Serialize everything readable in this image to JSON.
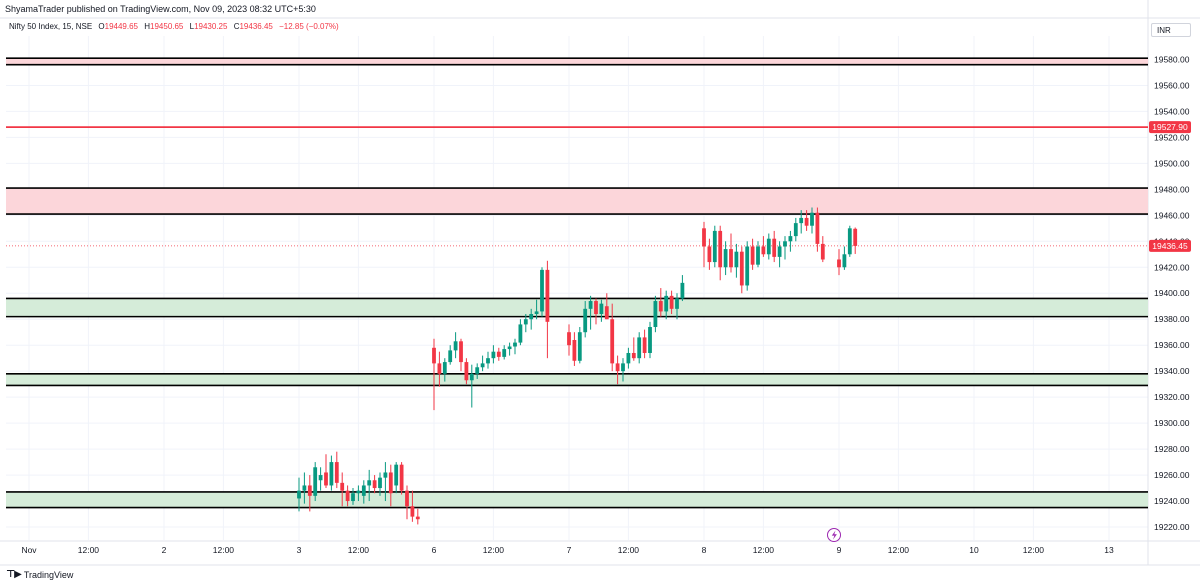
{
  "header": {
    "publisher_line": "ShyamaTrader published on TradingView.com, Nov 09, 2023 08:32 UTC+5:30"
  },
  "legend": {
    "symbol": "Nifty 50 Index, 15, NSE",
    "open_label": "O",
    "open": "19449.65",
    "high_label": "H",
    "high": "19450.65",
    "low_label": "L",
    "low": "19430.25",
    "close_label": "C",
    "close": "19436.45",
    "change": "−12.85 (−0.07%)"
  },
  "currency_button": "INR",
  "footer": {
    "brand": "TradingView"
  },
  "colors": {
    "up": "#089981",
    "down": "#f23645",
    "support_zone": "#d5ecd9",
    "resistance_zone": "#fcd6da",
    "red_line": "#f23645"
  },
  "chart_data": {
    "type": "candlestick",
    "symbol": "Nifty 50 Index",
    "interval": "15",
    "exchange": "NSE",
    "ylim": [
      19210,
      19595
    ],
    "y_ticks": [
      19220,
      19240,
      19260,
      19280,
      19300,
      19320,
      19340,
      19360,
      19380,
      19400,
      19420,
      19440,
      19460,
      19480,
      19500,
      19520,
      19540,
      19560,
      19580
    ],
    "x_ticks": [
      {
        "label": "Nov",
        "at": "2023-11-01 09:15"
      },
      {
        "label": "12:00",
        "at": "2023-11-01 12:00"
      },
      {
        "label": "2",
        "at": "2023-11-02 09:15"
      },
      {
        "label": "12:00",
        "at": "2023-11-02 12:00"
      },
      {
        "label": "3",
        "at": "2023-11-03 09:15"
      },
      {
        "label": "12:00",
        "at": "2023-11-03 12:00"
      },
      {
        "label": "6",
        "at": "2023-11-06 09:15"
      },
      {
        "label": "12:00",
        "at": "2023-11-06 12:00"
      },
      {
        "label": "7",
        "at": "2023-11-07 09:15"
      },
      {
        "label": "12:00",
        "at": "2023-11-07 12:00"
      },
      {
        "label": "8",
        "at": "2023-11-08 09:15"
      },
      {
        "label": "12:00",
        "at": "2023-11-08 12:00"
      },
      {
        "label": "9",
        "at": "2023-11-09 09:15"
      },
      {
        "label": "12:00",
        "at": "2023-11-09 12:00"
      },
      {
        "label": "10",
        "at": "2023-11-10 09:15"
      },
      {
        "label": "12:00",
        "at": "2023-11-10 12:00"
      },
      {
        "label": "13",
        "at": "2023-11-13 09:15"
      }
    ],
    "zones": [
      {
        "kind": "resistance",
        "low": 19576,
        "high": 19581
      },
      {
        "kind": "resistance",
        "low": 19461,
        "high": 19481
      },
      {
        "kind": "support",
        "low": 19382,
        "high": 19396
      },
      {
        "kind": "support",
        "low": 19329,
        "high": 19338
      },
      {
        "kind": "support",
        "low": 19235,
        "high": 19247
      }
    ],
    "horizontal_lines": [
      {
        "value": 19527.9,
        "label": "19527.90",
        "style": "solid"
      },
      {
        "value": 19436.45,
        "label": "19436.45",
        "style": "dotted"
      }
    ],
    "candles": [
      {
        "t": "2023-11-03 09:15",
        "o": 19242,
        "h": 19258,
        "l": 19232,
        "c": 19248
      },
      {
        "t": "2023-11-03 09:30",
        "o": 19248,
        "h": 19262,
        "l": 19238,
        "c": 19252
      },
      {
        "t": "2023-11-03 09:45",
        "o": 19252,
        "h": 19260,
        "l": 19232,
        "c": 19244
      },
      {
        "t": "2023-11-03 10:00",
        "o": 19244,
        "h": 19270,
        "l": 19240,
        "c": 19266
      },
      {
        "t": "2023-11-03 10:15",
        "o": 19256,
        "h": 19266,
        "l": 19248,
        "c": 19260
      },
      {
        "t": "2023-11-03 10:30",
        "o": 19262,
        "h": 19276,
        "l": 19250,
        "c": 19252
      },
      {
        "t": "2023-11-03 10:45",
        "o": 19252,
        "h": 19275,
        "l": 19248,
        "c": 19270
      },
      {
        "t": "2023-11-03 11:00",
        "o": 19270,
        "h": 19278,
        "l": 19250,
        "c": 19254
      },
      {
        "t": "2023-11-03 11:15",
        "o": 19254,
        "h": 19262,
        "l": 19236,
        "c": 19248
      },
      {
        "t": "2023-11-03 11:30",
        "o": 19248,
        "h": 19252,
        "l": 19236,
        "c": 19240
      },
      {
        "t": "2023-11-03 11:45",
        "o": 19240,
        "h": 19250,
        "l": 19237,
        "c": 19246
      },
      {
        "t": "2023-11-03 12:00",
        "o": 19246,
        "h": 19252,
        "l": 19240,
        "c": 19248
      },
      {
        "t": "2023-11-03 12:15",
        "o": 19244,
        "h": 19256,
        "l": 19238,
        "c": 19252
      },
      {
        "t": "2023-11-03 12:30",
        "o": 19252,
        "h": 19264,
        "l": 19240,
        "c": 19256
      },
      {
        "t": "2023-11-03 12:45",
        "o": 19256,
        "h": 19260,
        "l": 19246,
        "c": 19250
      },
      {
        "t": "2023-11-03 13:00",
        "o": 19250,
        "h": 19262,
        "l": 19244,
        "c": 19258
      },
      {
        "t": "2023-11-03 13:15",
        "o": 19258,
        "h": 19270,
        "l": 19240,
        "c": 19262
      },
      {
        "t": "2023-11-03 13:30",
        "o": 19262,
        "h": 19268,
        "l": 19236,
        "c": 19246
      },
      {
        "t": "2023-11-03 13:45",
        "o": 19252,
        "h": 19270,
        "l": 19246,
        "c": 19268
      },
      {
        "t": "2023-11-03 14:00",
        "o": 19268,
        "h": 19270,
        "l": 19245,
        "c": 19248
      },
      {
        "t": "2023-11-03 14:15",
        "o": 19248,
        "h": 19252,
        "l": 19226,
        "c": 19236
      },
      {
        "t": "2023-11-03 14:30",
        "o": 19236,
        "h": 19248,
        "l": 19224,
        "c": 19228
      },
      {
        "t": "2023-11-03 14:45",
        "o": 19228,
        "h": 19234,
        "l": 19222,
        "c": 19226
      },
      {
        "t": "2023-11-06 09:15",
        "o": 19358,
        "h": 19365,
        "l": 19310,
        "c": 19346
      },
      {
        "t": "2023-11-06 09:30",
        "o": 19346,
        "h": 19355,
        "l": 19328,
        "c": 19338
      },
      {
        "t": "2023-11-06 09:45",
        "o": 19338,
        "h": 19350,
        "l": 19332,
        "c": 19347
      },
      {
        "t": "2023-11-06 10:00",
        "o": 19347,
        "h": 19360,
        "l": 19345,
        "c": 19356
      },
      {
        "t": "2023-11-06 10:15",
        "o": 19356,
        "h": 19370,
        "l": 19350,
        "c": 19363
      },
      {
        "t": "2023-11-06 10:30",
        "o": 19363,
        "h": 19365,
        "l": 19340,
        "c": 19347
      },
      {
        "t": "2023-11-06 10:45",
        "o": 19347,
        "h": 19350,
        "l": 19330,
        "c": 19333
      },
      {
        "t": "2023-11-06 11:00",
        "o": 19333,
        "h": 19345,
        "l": 19312,
        "c": 19338
      },
      {
        "t": "2023-11-06 11:15",
        "o": 19338,
        "h": 19346,
        "l": 19334,
        "c": 19343
      },
      {
        "t": "2023-11-06 11:30",
        "o": 19343,
        "h": 19352,
        "l": 19340,
        "c": 19346
      },
      {
        "t": "2023-11-06 11:45",
        "o": 19346,
        "h": 19355,
        "l": 19342,
        "c": 19350
      },
      {
        "t": "2023-11-06 12:00",
        "o": 19350,
        "h": 19360,
        "l": 19346,
        "c": 19355
      },
      {
        "t": "2023-11-06 12:15",
        "o": 19355,
        "h": 19358,
        "l": 19348,
        "c": 19351
      },
      {
        "t": "2023-11-06 12:30",
        "o": 19351,
        "h": 19360,
        "l": 19349,
        "c": 19357
      },
      {
        "t": "2023-11-06 12:45",
        "o": 19357,
        "h": 19362,
        "l": 19352,
        "c": 19359
      },
      {
        "t": "2023-11-06 13:00",
        "o": 19359,
        "h": 19365,
        "l": 19353,
        "c": 19362
      },
      {
        "t": "2023-11-06 13:15",
        "o": 19362,
        "h": 19380,
        "l": 19360,
        "c": 19376
      },
      {
        "t": "2023-11-06 13:30",
        "o": 19376,
        "h": 19384,
        "l": 19370,
        "c": 19380
      },
      {
        "t": "2023-11-06 13:45",
        "o": 19380,
        "h": 19388,
        "l": 19372,
        "c": 19384
      },
      {
        "t": "2023-11-06 14:00",
        "o": 19384,
        "h": 19395,
        "l": 19380,
        "c": 19386
      },
      {
        "t": "2023-11-06 14:15",
        "o": 19386,
        "h": 19420,
        "l": 19382,
        "c": 19418
      },
      {
        "t": "2023-11-06 14:30",
        "o": 19418,
        "h": 19425,
        "l": 19350,
        "c": 19378
      },
      {
        "t": "2023-11-07 09:15",
        "o": 19370,
        "h": 19376,
        "l": 19352,
        "c": 19360
      },
      {
        "t": "2023-11-07 09:30",
        "o": 19364,
        "h": 19370,
        "l": 19344,
        "c": 19348
      },
      {
        "t": "2023-11-07 09:45",
        "o": 19348,
        "h": 19374,
        "l": 19346,
        "c": 19370
      },
      {
        "t": "2023-11-07 10:00",
        "o": 19370,
        "h": 19394,
        "l": 19366,
        "c": 19388
      },
      {
        "t": "2023-11-07 10:15",
        "o": 19388,
        "h": 19398,
        "l": 19372,
        "c": 19394
      },
      {
        "t": "2023-11-07 10:30",
        "o": 19394,
        "h": 19396,
        "l": 19376,
        "c": 19384
      },
      {
        "t": "2023-11-07 10:45",
        "o": 19384,
        "h": 19395,
        "l": 19378,
        "c": 19392
      },
      {
        "t": "2023-11-07 11:00",
        "o": 19390,
        "h": 19400,
        "l": 19380,
        "c": 19380
      },
      {
        "t": "2023-11-07 11:15",
        "o": 19380,
        "h": 19392,
        "l": 19340,
        "c": 19346
      },
      {
        "t": "2023-11-07 11:30",
        "o": 19346,
        "h": 19352,
        "l": 19330,
        "c": 19340
      },
      {
        "t": "2023-11-07 11:45",
        "o": 19340,
        "h": 19350,
        "l": 19332,
        "c": 19346
      },
      {
        "t": "2023-11-07 12:00",
        "o": 19346,
        "h": 19358,
        "l": 19342,
        "c": 19354
      },
      {
        "t": "2023-11-07 12:15",
        "o": 19354,
        "h": 19366,
        "l": 19348,
        "c": 19350
      },
      {
        "t": "2023-11-07 12:30",
        "o": 19350,
        "h": 19370,
        "l": 19346,
        "c": 19366
      },
      {
        "t": "2023-11-07 12:45",
        "o": 19366,
        "h": 19372,
        "l": 19350,
        "c": 19354
      },
      {
        "t": "2023-11-07 13:00",
        "o": 19354,
        "h": 19378,
        "l": 19350,
        "c": 19374
      },
      {
        "t": "2023-11-07 13:15",
        "o": 19374,
        "h": 19398,
        "l": 19370,
        "c": 19394
      },
      {
        "t": "2023-11-07 13:30",
        "o": 19394,
        "h": 19404,
        "l": 19382,
        "c": 19386
      },
      {
        "t": "2023-11-07 13:45",
        "o": 19386,
        "h": 19402,
        "l": 19380,
        "c": 19398
      },
      {
        "t": "2023-11-07 14:00",
        "o": 19398,
        "h": 19402,
        "l": 19384,
        "c": 19388
      },
      {
        "t": "2023-11-07 14:15",
        "o": 19388,
        "h": 19400,
        "l": 19380,
        "c": 19396
      },
      {
        "t": "2023-11-07 14:30",
        "o": 19396,
        "h": 19414,
        "l": 19394,
        "c": 19408
      },
      {
        "t": "2023-11-08 09:15",
        "o": 19450,
        "h": 19455,
        "l": 19420,
        "c": 19436
      },
      {
        "t": "2023-11-08 09:30",
        "o": 19436,
        "h": 19442,
        "l": 19418,
        "c": 19424
      },
      {
        "t": "2023-11-08 09:45",
        "o": 19424,
        "h": 19452,
        "l": 19420,
        "c": 19448
      },
      {
        "t": "2023-11-08 10:00",
        "o": 19448,
        "h": 19452,
        "l": 19410,
        "c": 19420
      },
      {
        "t": "2023-11-08 10:15",
        "o": 19420,
        "h": 19440,
        "l": 19414,
        "c": 19434
      },
      {
        "t": "2023-11-08 10:30",
        "o": 19434,
        "h": 19446,
        "l": 19416,
        "c": 19420
      },
      {
        "t": "2023-11-08 10:45",
        "o": 19420,
        "h": 19438,
        "l": 19412,
        "c": 19432
      },
      {
        "t": "2023-11-08 11:00",
        "o": 19432,
        "h": 19436,
        "l": 19400,
        "c": 19406
      },
      {
        "t": "2023-11-08 11:15",
        "o": 19406,
        "h": 19440,
        "l": 19402,
        "c": 19436
      },
      {
        "t": "2023-11-08 11:30",
        "o": 19436,
        "h": 19442,
        "l": 19418,
        "c": 19422
      },
      {
        "t": "2023-11-08 11:45",
        "o": 19422,
        "h": 19440,
        "l": 19420,
        "c": 19436
      },
      {
        "t": "2023-11-08 12:00",
        "o": 19436,
        "h": 19444,
        "l": 19428,
        "c": 19430
      },
      {
        "t": "2023-11-08 12:15",
        "o": 19430,
        "h": 19446,
        "l": 19426,
        "c": 19442
      },
      {
        "t": "2023-11-08 12:30",
        "o": 19442,
        "h": 19448,
        "l": 19424,
        "c": 19428
      },
      {
        "t": "2023-11-08 12:45",
        "o": 19428,
        "h": 19440,
        "l": 19420,
        "c": 19436
      },
      {
        "t": "2023-11-08 13:00",
        "o": 19436,
        "h": 19444,
        "l": 19426,
        "c": 19440
      },
      {
        "t": "2023-11-08 13:15",
        "o": 19440,
        "h": 19448,
        "l": 19432,
        "c": 19444
      },
      {
        "t": "2023-11-08 13:30",
        "o": 19444,
        "h": 19458,
        "l": 19440,
        "c": 19454
      },
      {
        "t": "2023-11-08 13:45",
        "o": 19454,
        "h": 19464,
        "l": 19446,
        "c": 19458
      },
      {
        "t": "2023-11-08 14:00",
        "o": 19458,
        "h": 19464,
        "l": 19448,
        "c": 19452
      },
      {
        "t": "2023-11-08 14:15",
        "o": 19452,
        "h": 19466,
        "l": 19446,
        "c": 19462
      },
      {
        "t": "2023-11-08 14:30",
        "o": 19462,
        "h": 19466,
        "l": 19432,
        "c": 19438
      },
      {
        "t": "2023-11-08 14:45",
        "o": 19438,
        "h": 19444,
        "l": 19424,
        "c": 19426
      },
      {
        "t": "2023-11-09 09:15",
        "o": 19426,
        "h": 19434,
        "l": 19414,
        "c": 19420
      },
      {
        "t": "2023-11-09 09:30",
        "o": 19420,
        "h": 19436,
        "l": 19418,
        "c": 19430
      },
      {
        "t": "2023-11-09 09:45",
        "o": 19430,
        "h": 19452,
        "l": 19428,
        "c": 19450
      },
      {
        "t": "2023-11-09 10:00",
        "o": 19449.65,
        "h": 19450.65,
        "l": 19430.25,
        "c": 19436.45
      }
    ]
  }
}
